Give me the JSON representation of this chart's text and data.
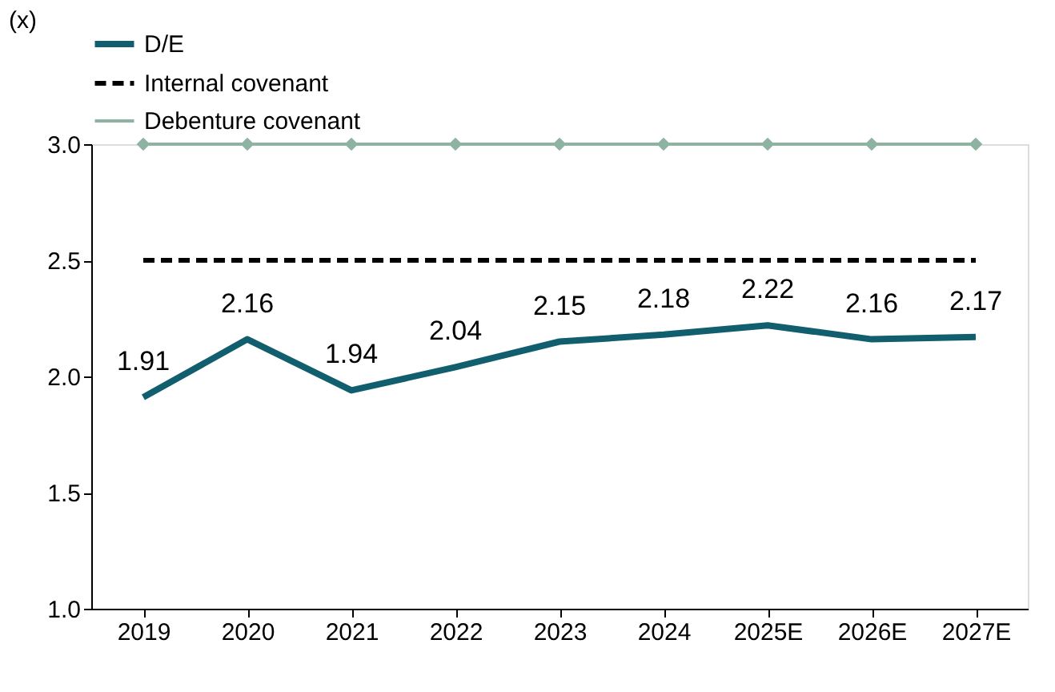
{
  "chart_data": {
    "type": "line",
    "ylabel": "(x)",
    "categories": [
      "2019",
      "2020",
      "2021",
      "2022",
      "2023",
      "2024",
      "2025E",
      "2026E",
      "2027E"
    ],
    "ylim": [
      1.0,
      3.0
    ],
    "yticks": [
      {
        "value": 1.0,
        "label": "1.0"
      },
      {
        "value": 1.5,
        "label": "1.5"
      },
      {
        "value": 2.0,
        "label": "2.0"
      },
      {
        "value": 2.5,
        "label": "2.5"
      },
      {
        "value": 3.0,
        "label": "3.0"
      }
    ],
    "grid": false,
    "legend": "top",
    "series": [
      {
        "name": "D/E",
        "color": "#115e6e",
        "line_style": "solid",
        "marker": "none",
        "values": [
          1.91,
          2.16,
          1.94,
          2.04,
          2.15,
          2.18,
          2.22,
          2.16,
          2.17
        ],
        "value_labels": [
          "1.91",
          "2.16",
          "1.94",
          "2.04",
          "2.15",
          "2.18",
          "2.22",
          "2.16",
          "2.17"
        ]
      },
      {
        "name": "Internal covenant",
        "color": "#000000",
        "line_style": "dashed",
        "marker": "none",
        "values": [
          2.5,
          2.5,
          2.5,
          2.5,
          2.5,
          2.5,
          2.5,
          2.5,
          2.5
        ]
      },
      {
        "name": "Debenture covenant",
        "color": "#8fb3a3",
        "line_style": "solid",
        "marker": "diamond",
        "values": [
          3.0,
          3.0,
          3.0,
          3.0,
          3.0,
          3.0,
          3.0,
          3.0,
          3.0
        ]
      }
    ]
  }
}
